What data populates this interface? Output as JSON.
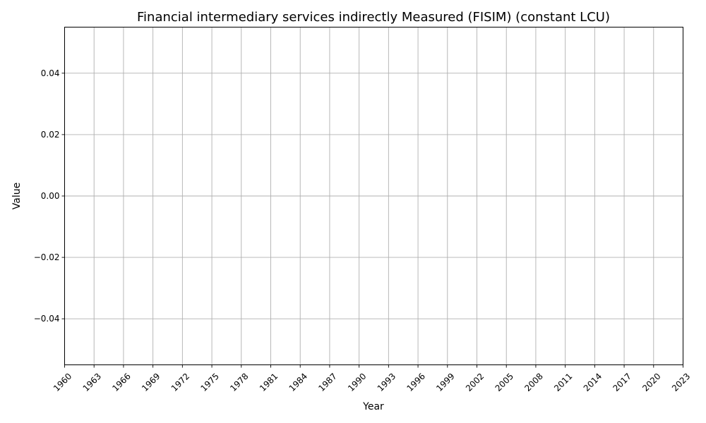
{
  "chart_data": {
    "type": "line",
    "title": "Financial intermediary services indirectly Measured (FISIM) (constant LCU)",
    "xlabel": "Year",
    "ylabel": "Value",
    "xlim": [
      1960,
      2023
    ],
    "ylim": [
      -0.055,
      0.055
    ],
    "x_ticks": [
      1960,
      1963,
      1966,
      1969,
      1972,
      1975,
      1978,
      1981,
      1984,
      1987,
      1990,
      1993,
      1996,
      1999,
      2002,
      2005,
      2008,
      2011,
      2014,
      2017,
      2020,
      2023
    ],
    "y_ticks": [
      -0.04,
      -0.02,
      0.0,
      0.02,
      0.04
    ],
    "y_tick_labels": [
      "−0.04",
      "−0.02",
      "0.00",
      "0.02",
      "0.04"
    ],
    "grid": true,
    "series": [
      {
        "values": []
      }
    ]
  }
}
